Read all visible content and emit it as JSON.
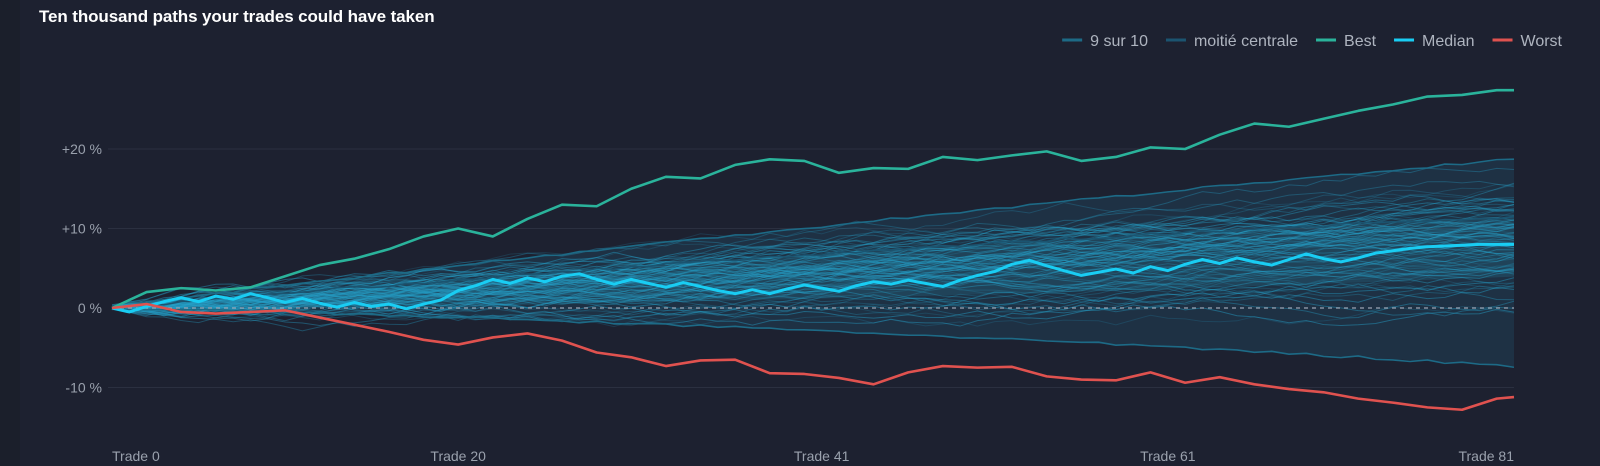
{
  "chart_data": {
    "type": "line",
    "title": "Ten thousand paths your trades could have taken",
    "xlabel": "",
    "ylabel": "",
    "x_range": [
      0,
      81
    ],
    "ylim": [
      -15,
      27
    ],
    "x_tick_labels": [
      {
        "value": 0,
        "label": "Trade 0"
      },
      {
        "value": 20,
        "label": "Trade 20"
      },
      {
        "value": 41,
        "label": "Trade 41"
      },
      {
        "value": 61,
        "label": "Trade 61"
      },
      {
        "value": 81,
        "label": "Trade 81"
      }
    ],
    "y_ticks": [
      {
        "value": 20,
        "label": "+20 %"
      },
      {
        "value": 10,
        "label": "+10 %"
      },
      {
        "value": 0,
        "label": "0 %"
      },
      {
        "value": -10,
        "label": "-10 %"
      }
    ],
    "zero_line": "dashed",
    "grid": true,
    "legend_position": "top-right",
    "legend": [
      {
        "label": "9 sur 10",
        "color": "#1d6a86"
      },
      {
        "label": "moitié centrale",
        "color": "#1b5470"
      },
      {
        "label": "Best",
        "color": "#2ab39b"
      },
      {
        "label": "Median",
        "color": "#19cdf3"
      },
      {
        "label": "Worst",
        "color": "#e0524f"
      }
    ],
    "series": [
      {
        "name": "Best",
        "color": "#2ab39b",
        "x": [
          0,
          2,
          4,
          6,
          8,
          10,
          12,
          14,
          16,
          18,
          20,
          22,
          24,
          26,
          28,
          30,
          32,
          34,
          36,
          38,
          40,
          42,
          44,
          46,
          48,
          50,
          52,
          54,
          56,
          58,
          60,
          62,
          64,
          66,
          68,
          70,
          72,
          74,
          76,
          78,
          80,
          81
        ],
        "values": [
          0,
          2,
          2.5,
          2.2,
          2.6,
          4,
          5.4,
          6.2,
          7.4,
          9,
          10,
          9,
          11.2,
          13,
          12.8,
          15,
          16.5,
          16.3,
          18,
          18.7,
          18.5,
          17,
          17.6,
          17.5,
          19,
          18.6,
          19.2,
          19.7,
          18.5,
          19,
          20.2,
          20,
          21.8,
          23.2,
          22.8,
          23.8,
          24.8,
          25.6,
          26.6,
          26.8,
          27.4,
          27.4
        ]
      },
      {
        "name": "Median",
        "color": "#19cdf3",
        "x": [
          0,
          1,
          2,
          3,
          4,
          5,
          6,
          7,
          8,
          9,
          10,
          11,
          12,
          13,
          14,
          15,
          16,
          17,
          18,
          19,
          20,
          21,
          22,
          23,
          24,
          25,
          26,
          27,
          28,
          29,
          30,
          31,
          32,
          33,
          34,
          35,
          36,
          37,
          38,
          39,
          40,
          41,
          42,
          43,
          44,
          45,
          46,
          47,
          48,
          49,
          50,
          51,
          52,
          53,
          54,
          55,
          56,
          57,
          58,
          59,
          60,
          61,
          62,
          63,
          64,
          65,
          66,
          67,
          68,
          69,
          70,
          71,
          72,
          73,
          74,
          75,
          76,
          77,
          78,
          79,
          80,
          81
        ],
        "values": [
          0,
          -0.5,
          0.2,
          0.8,
          1.3,
          0.8,
          1.5,
          1.1,
          1.8,
          1.3,
          0.7,
          1.2,
          0.6,
          0.1,
          0.7,
          0.2,
          0.5,
          -0.1,
          0.5,
          1,
          2.2,
          2.8,
          3.6,
          3.1,
          3.8,
          3.3,
          4,
          4.3,
          3.6,
          3,
          3.6,
          3.1,
          2.6,
          3.2,
          2.7,
          2.2,
          1.8,
          2.3,
          1.8,
          2.4,
          2.9,
          2.5,
          2.1,
          2.8,
          3.3,
          3,
          3.5,
          3.1,
          2.7,
          3.5,
          4.1,
          4.6,
          5.5,
          6,
          5.3,
          4.7,
          4.1,
          4.5,
          4.9,
          4.4,
          5.2,
          4.7,
          5.5,
          6.1,
          5.6,
          6.3,
          5.8,
          5.4,
          6.1,
          6.8,
          6.2,
          5.8,
          6.3,
          6.9,
          7.2,
          7.5,
          7.7,
          7.8,
          7.9,
          8,
          8,
          8
        ]
      },
      {
        "name": "Worst",
        "color": "#e0524f",
        "x": [
          0,
          2,
          4,
          6,
          8,
          10,
          12,
          14,
          16,
          18,
          20,
          22,
          24,
          26,
          28,
          30,
          32,
          34,
          36,
          38,
          40,
          42,
          44,
          46,
          48,
          50,
          52,
          54,
          56,
          58,
          60,
          62,
          64,
          66,
          68,
          70,
          72,
          74,
          76,
          78,
          80,
          81
        ],
        "values": [
          0,
          0.5,
          -0.5,
          -0.7,
          -0.5,
          -0.3,
          -1.2,
          -2.1,
          -3,
          -4,
          -4.6,
          -3.7,
          -3.2,
          -4.1,
          -5.6,
          -6.2,
          -7.3,
          -6.6,
          -6.5,
          -8.2,
          -8.3,
          -8.8,
          -9.6,
          -8.1,
          -7.3,
          -7.5,
          -7.4,
          -8.6,
          -9,
          -9.1,
          -8.1,
          -9.4,
          -8.7,
          -9.6,
          -10.2,
          -10.6,
          -11.4,
          -11.9,
          -12.5,
          -12.8,
          -11.4,
          -11.2
        ]
      }
    ]
  }
}
